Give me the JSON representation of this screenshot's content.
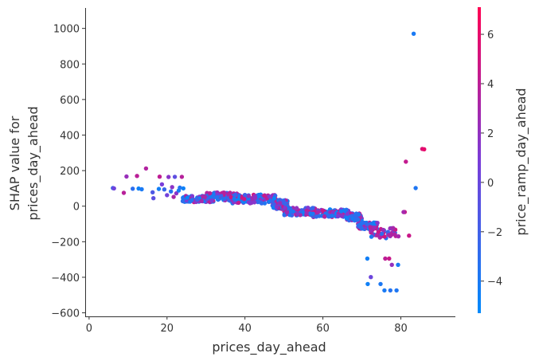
{
  "chart_data": {
    "type": "scatter",
    "xlabel": "prices_day_ahead",
    "ylabel_lines": [
      "SHAP value for",
      "prices_day_ahead"
    ],
    "x_ticks": [
      0,
      20,
      40,
      60,
      80
    ],
    "y_ticks": [
      -600,
      -400,
      -200,
      0,
      200,
      400,
      600,
      800,
      1000
    ],
    "xlim": [
      -1,
      94
    ],
    "ylim": [
      -620,
      1115
    ],
    "grid": false,
    "colorbar": {
      "label": "price_ramp_day_ahead",
      "ticks": [
        -4,
        -2,
        0,
        2,
        4,
        6
      ],
      "range": [
        -5.3,
        7.1
      ],
      "low_color": "#008afb",
      "mid_color": "#7a3cd8",
      "high_color": "#ff0052"
    },
    "points": [
      [
        6.1,
        102,
        -2.2
      ],
      [
        6.4,
        100,
        0.4
      ],
      [
        8.9,
        75,
        3.8
      ],
      [
        9.6,
        167,
        2.3
      ],
      [
        11.2,
        98,
        -3.1
      ],
      [
        12.3,
        170,
        3.9
      ],
      [
        12.7,
        99,
        -4.6
      ],
      [
        13.5,
        95,
        -4.0
      ],
      [
        14.6,
        212,
        3.5
      ],
      [
        16.3,
        78,
        -1.4
      ],
      [
        16.5,
        45,
        -0.6
      ],
      [
        17.9,
        97,
        -4.4
      ],
      [
        18.1,
        166,
        4.1
      ],
      [
        18.7,
        123,
        0.8
      ],
      [
        19.3,
        94,
        -2.5
      ],
      [
        20.0,
        62,
        0.5
      ],
      [
        20.4,
        164,
        1.6
      ],
      [
        21.0,
        83,
        -3.2
      ],
      [
        21.3,
        107,
        1.7
      ],
      [
        21.7,
        52,
        3.2
      ],
      [
        22.0,
        165,
        -0.5
      ],
      [
        22.4,
        72,
        1.6
      ],
      [
        23.0,
        88,
        -4.1
      ],
      [
        23.3,
        104,
        -3.6
      ],
      [
        23.8,
        165,
        3.7
      ],
      [
        24.2,
        100,
        -4.6
      ],
      [
        75.8,
        -474,
        -4.0
      ],
      [
        77.3,
        -474,
        -3.5
      ],
      [
        78.9,
        -474,
        -3.8
      ],
      [
        71.4,
        -295,
        -4.4
      ],
      [
        72.3,
        -399,
        0.2
      ],
      [
        71.5,
        -438,
        -4.5
      ],
      [
        74.8,
        -438,
        -3.9
      ],
      [
        76.0,
        -295,
        4.0
      ],
      [
        77.0,
        -295,
        4.5
      ],
      [
        77.7,
        -330,
        2.1
      ],
      [
        79.3,
        -330,
        -4.1
      ],
      [
        75.6,
        -148,
        2.6
      ],
      [
        76.2,
        -180,
        -3.5
      ],
      [
        78.7,
        -168,
        4.0
      ],
      [
        79.4,
        -170,
        2.9
      ],
      [
        81.0,
        -33,
        4.6
      ],
      [
        80.7,
        -33,
        2.9
      ],
      [
        82.1,
        -166,
        4.6
      ],
      [
        81.3,
        250,
        4.3
      ],
      [
        83.3,
        970,
        -4.0
      ],
      [
        83.8,
        102,
        -3.7
      ],
      [
        85.5,
        322,
        5.4
      ],
      [
        86.0,
        320,
        6.0
      ]
    ]
  }
}
